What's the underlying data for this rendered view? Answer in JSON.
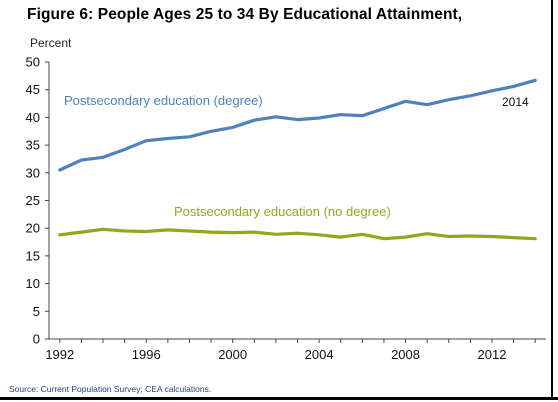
{
  "figure": {
    "title": "Figure 6: People Ages 25 to 34 By Educational Attainment,",
    "ylabel": "Percent",
    "source": "Source: Current Population Survey; CEA calculations."
  },
  "chart_data": {
    "type": "line",
    "x": [
      1992,
      1993,
      1994,
      1995,
      1996,
      1997,
      1998,
      1999,
      2000,
      2001,
      2002,
      2003,
      2004,
      2005,
      2006,
      2007,
      2008,
      2009,
      2010,
      2011,
      2012,
      2013,
      2014
    ],
    "series": [
      {
        "name": "Postsecondary education (degree)",
        "color": "#4f81bd",
        "values": [
          30.5,
          32.3,
          32.8,
          34.2,
          35.8,
          36.2,
          36.5,
          37.5,
          38.2,
          39.5,
          40.1,
          39.6,
          39.9,
          40.5,
          40.3,
          41.6,
          42.9,
          42.3,
          43.2,
          43.9,
          44.8,
          45.6,
          46.7
        ]
      },
      {
        "name": "Postsecondary education (no degree)",
        "color": "#8caa1c",
        "values": [
          18.8,
          19.3,
          19.8,
          19.5,
          19.4,
          19.7,
          19.5,
          19.3,
          19.2,
          19.3,
          18.9,
          19.1,
          18.8,
          18.4,
          18.9,
          18.1,
          18.4,
          19.0,
          18.5,
          18.6,
          18.5,
          18.3,
          18.1
        ]
      }
    ],
    "annotations": [
      "2014"
    ],
    "xticks": [
      "1992",
      "1996",
      "2000",
      "2004",
      "2008",
      "2012"
    ],
    "xtick_values": [
      1992,
      1996,
      2000,
      2004,
      2008,
      2012
    ],
    "yticks": [
      "0",
      "5",
      "10",
      "15",
      "20",
      "25",
      "30",
      "35",
      "40",
      "45",
      "50"
    ],
    "ylim": [
      0,
      50
    ],
    "xlim": [
      1991.5,
      2014.5
    ],
    "grid": false
  }
}
